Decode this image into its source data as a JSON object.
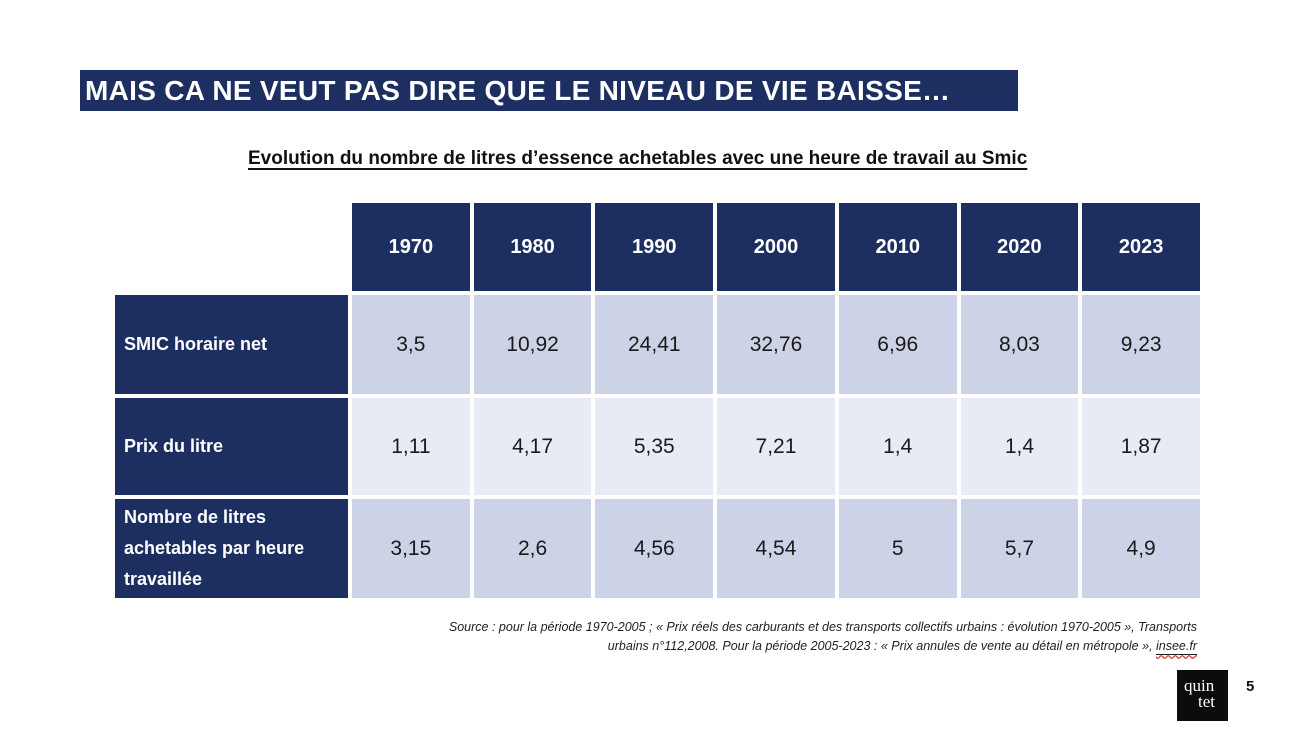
{
  "slide": {
    "title": "MAIS CA NE VEUT PAS DIRE QUE LE NIVEAU DE VIE BAISSE…",
    "subtitle": "Evolution du nombre de litres d’essence achetables avec une heure de travail au Smic",
    "page_number": "5",
    "logo_line1": "quin",
    "logo_line2": "tet"
  },
  "colors": {
    "navy": "#1c2f60",
    "row_light": "#ccd3e7",
    "row_lighter": "#e9ebf4",
    "title_text": "#ffffff",
    "value_text": "#1a1a1a",
    "spellcheck_wave": "#d23f31"
  },
  "chart_data": {
    "type": "table",
    "title": "Evolution du nombre de litres d’essence achetables avec une heure de travail au Smic",
    "columns": [
      "1970",
      "1980",
      "1990",
      "2000",
      "2010",
      "2020",
      "2023"
    ],
    "rows": [
      {
        "label": "SMIC horaire net",
        "values": [
          "3,5",
          "10,92",
          "24,41",
          "32,76",
          "6,96",
          "8,03",
          "9,23"
        ]
      },
      {
        "label": "Prix du litre",
        "values": [
          "1,11",
          "4,17",
          "5,35",
          "7,21",
          "1,4",
          "1,4",
          "1,87"
        ]
      },
      {
        "label": "Nombre de litres achetables par heure travaillée",
        "values": [
          "3,15",
          "2,6",
          "4,56",
          "4,54",
          "5",
          "5,7",
          "4,9"
        ]
      }
    ]
  },
  "source": {
    "line1": "Source : pour la période 1970-2005 ; « Prix réels des carburants et des transports collectifs urbains : évolution 1970-2005 », Transports",
    "line2": "urbains n°112,2008. Pour la période 2005-2023 : « Prix annules de vente au détail en métropole », ",
    "link": "insee.fr"
  }
}
